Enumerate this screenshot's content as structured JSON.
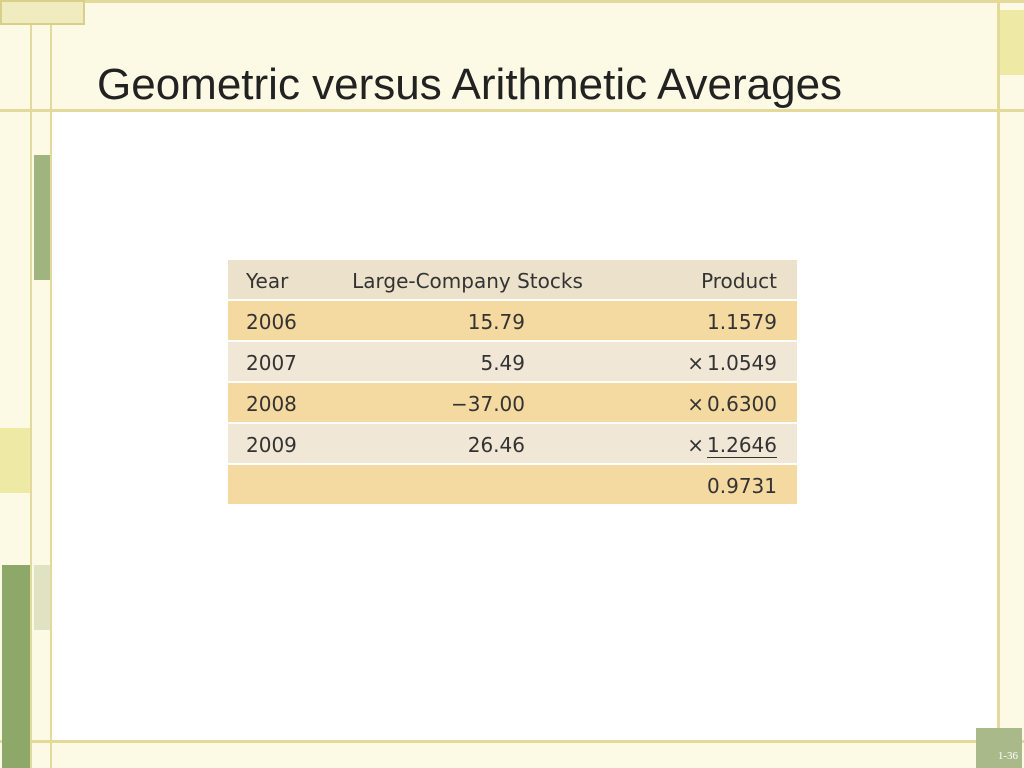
{
  "title": "Geometric versus Arithmetic Averages",
  "table": {
    "header": [
      "Year",
      "Large-Company Stocks",
      "Product"
    ],
    "rows": [
      {
        "year": "2006",
        "stocks": "15.79",
        "product": "1.1579"
      },
      {
        "year": "2007",
        "stocks": "5.49",
        "op": "×",
        "product": "1.0549"
      },
      {
        "year": "2008",
        "stocks": "−37.00",
        "op": "×",
        "product": "0.6300"
      },
      {
        "year": "2009",
        "stocks": "26.46",
        "op": "×",
        "product": "1.2646"
      }
    ],
    "total": "0.9731"
  },
  "slide_number": "1-36"
}
